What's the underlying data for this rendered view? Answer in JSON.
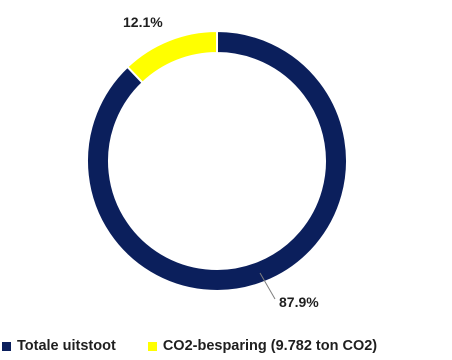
{
  "chart_data": {
    "type": "pie",
    "variant": "donut",
    "title": "",
    "legend_position": "bottom-left",
    "series": [
      {
        "name": "Totale uitstoot",
        "value": 87.9,
        "label": "87.9%",
        "color": "#0b1f5c"
      },
      {
        "name": "CO2-besparing (9.782 ton CO2)",
        "value": 12.1,
        "label": "12.1%",
        "color": "#ffff00"
      }
    ],
    "start": "top (12 o'clock)",
    "direction": "clockwise"
  }
}
